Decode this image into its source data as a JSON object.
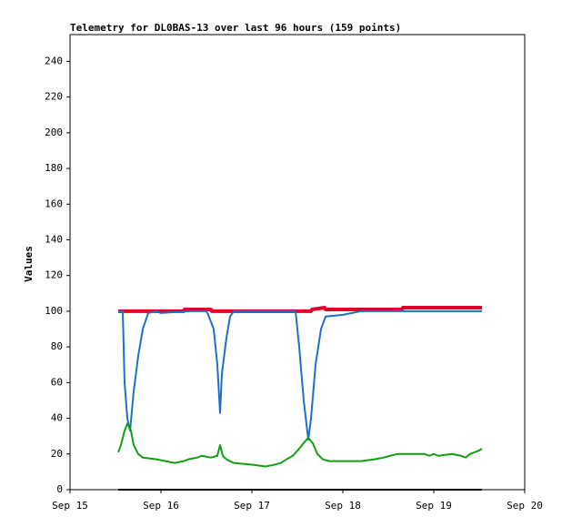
{
  "chart_data": {
    "type": "line",
    "title": "Telemetry for DL0BAS-13 over last 96 hours (159 points)",
    "y_label": "Values",
    "xlim": [
      15,
      20
    ],
    "xticks": [
      {
        "value": 15,
        "label": "Sep 15"
      },
      {
        "value": 16,
        "label": "Sep 16"
      },
      {
        "value": 17,
        "label": "Sep 17"
      },
      {
        "value": 18,
        "label": "Sep 18"
      },
      {
        "value": 19,
        "label": "Sep 19"
      },
      {
        "value": 20,
        "label": "Sep 20"
      }
    ],
    "ylim": [
      0,
      255
    ],
    "yticks": [
      0,
      20,
      40,
      60,
      80,
      100,
      120,
      140,
      160,
      180,
      200,
      220,
      240
    ],
    "series": [
      {
        "color": "#e0002a",
        "width": 4,
        "x": [
          15.53,
          16.25,
          16.26,
          16.55,
          16.56,
          17.65,
          17.66,
          17.8,
          17.81,
          18.1,
          18.11,
          18.65,
          18.66,
          19.53
        ],
        "values": [
          100,
          100,
          101,
          101,
          100,
          100,
          101,
          102,
          101,
          101,
          101,
          101,
          102,
          102
        ]
      },
      {
        "color": "#1f6ec8",
        "width": 2,
        "x": [
          15.53,
          15.58,
          15.6,
          15.63,
          15.66,
          15.7,
          15.75,
          15.8,
          15.86,
          15.95,
          16.0,
          16.3,
          16.5,
          16.52,
          16.58,
          16.62,
          16.65,
          16.67,
          16.72,
          16.76,
          16.8,
          17.0,
          17.48,
          17.52,
          17.57,
          17.62,
          17.65,
          17.7,
          17.76,
          17.81,
          18.0,
          18.2,
          19.53
        ],
        "values": [
          100,
          100,
          60,
          40,
          33,
          55,
          75,
          90,
          99,
          100,
          99,
          100,
          100,
          98,
          90,
          70,
          43,
          65,
          85,
          97,
          100,
          100,
          100,
          80,
          50,
          28,
          40,
          70,
          90,
          97,
          98,
          100,
          100
        ]
      },
      {
        "color": "#10a010",
        "width": 2,
        "x": [
          15.53,
          15.56,
          15.6,
          15.63,
          15.67,
          15.7,
          15.75,
          15.8,
          15.95,
          16.05,
          16.15,
          16.25,
          16.3,
          16.4,
          16.45,
          16.55,
          16.62,
          16.65,
          16.68,
          16.72,
          16.8,
          17.0,
          17.15,
          17.25,
          17.32,
          17.38,
          17.45,
          17.52,
          17.6,
          17.62,
          17.67,
          17.72,
          17.78,
          17.85,
          18.2,
          18.35,
          18.45,
          18.52,
          18.6,
          18.9,
          18.95,
          19.0,
          19.05,
          19.2,
          19.3,
          19.35,
          19.4,
          19.45,
          19.5,
          19.53
        ],
        "values": [
          21,
          25,
          33,
          37,
          33,
          25,
          20,
          18,
          17,
          16,
          15,
          16,
          17,
          18,
          19,
          18,
          19,
          25,
          19,
          17,
          15,
          14,
          13,
          14,
          15,
          17,
          19,
          23,
          28,
          29,
          26,
          20,
          17,
          16,
          16,
          17,
          18,
          19,
          20,
          20,
          19,
          20,
          19,
          20,
          19,
          18,
          20,
          21,
          22,
          23
        ]
      },
      {
        "color": "#000000",
        "width": 2,
        "x": [
          15.53,
          19.53
        ],
        "values": [
          0,
          0
        ]
      }
    ]
  }
}
